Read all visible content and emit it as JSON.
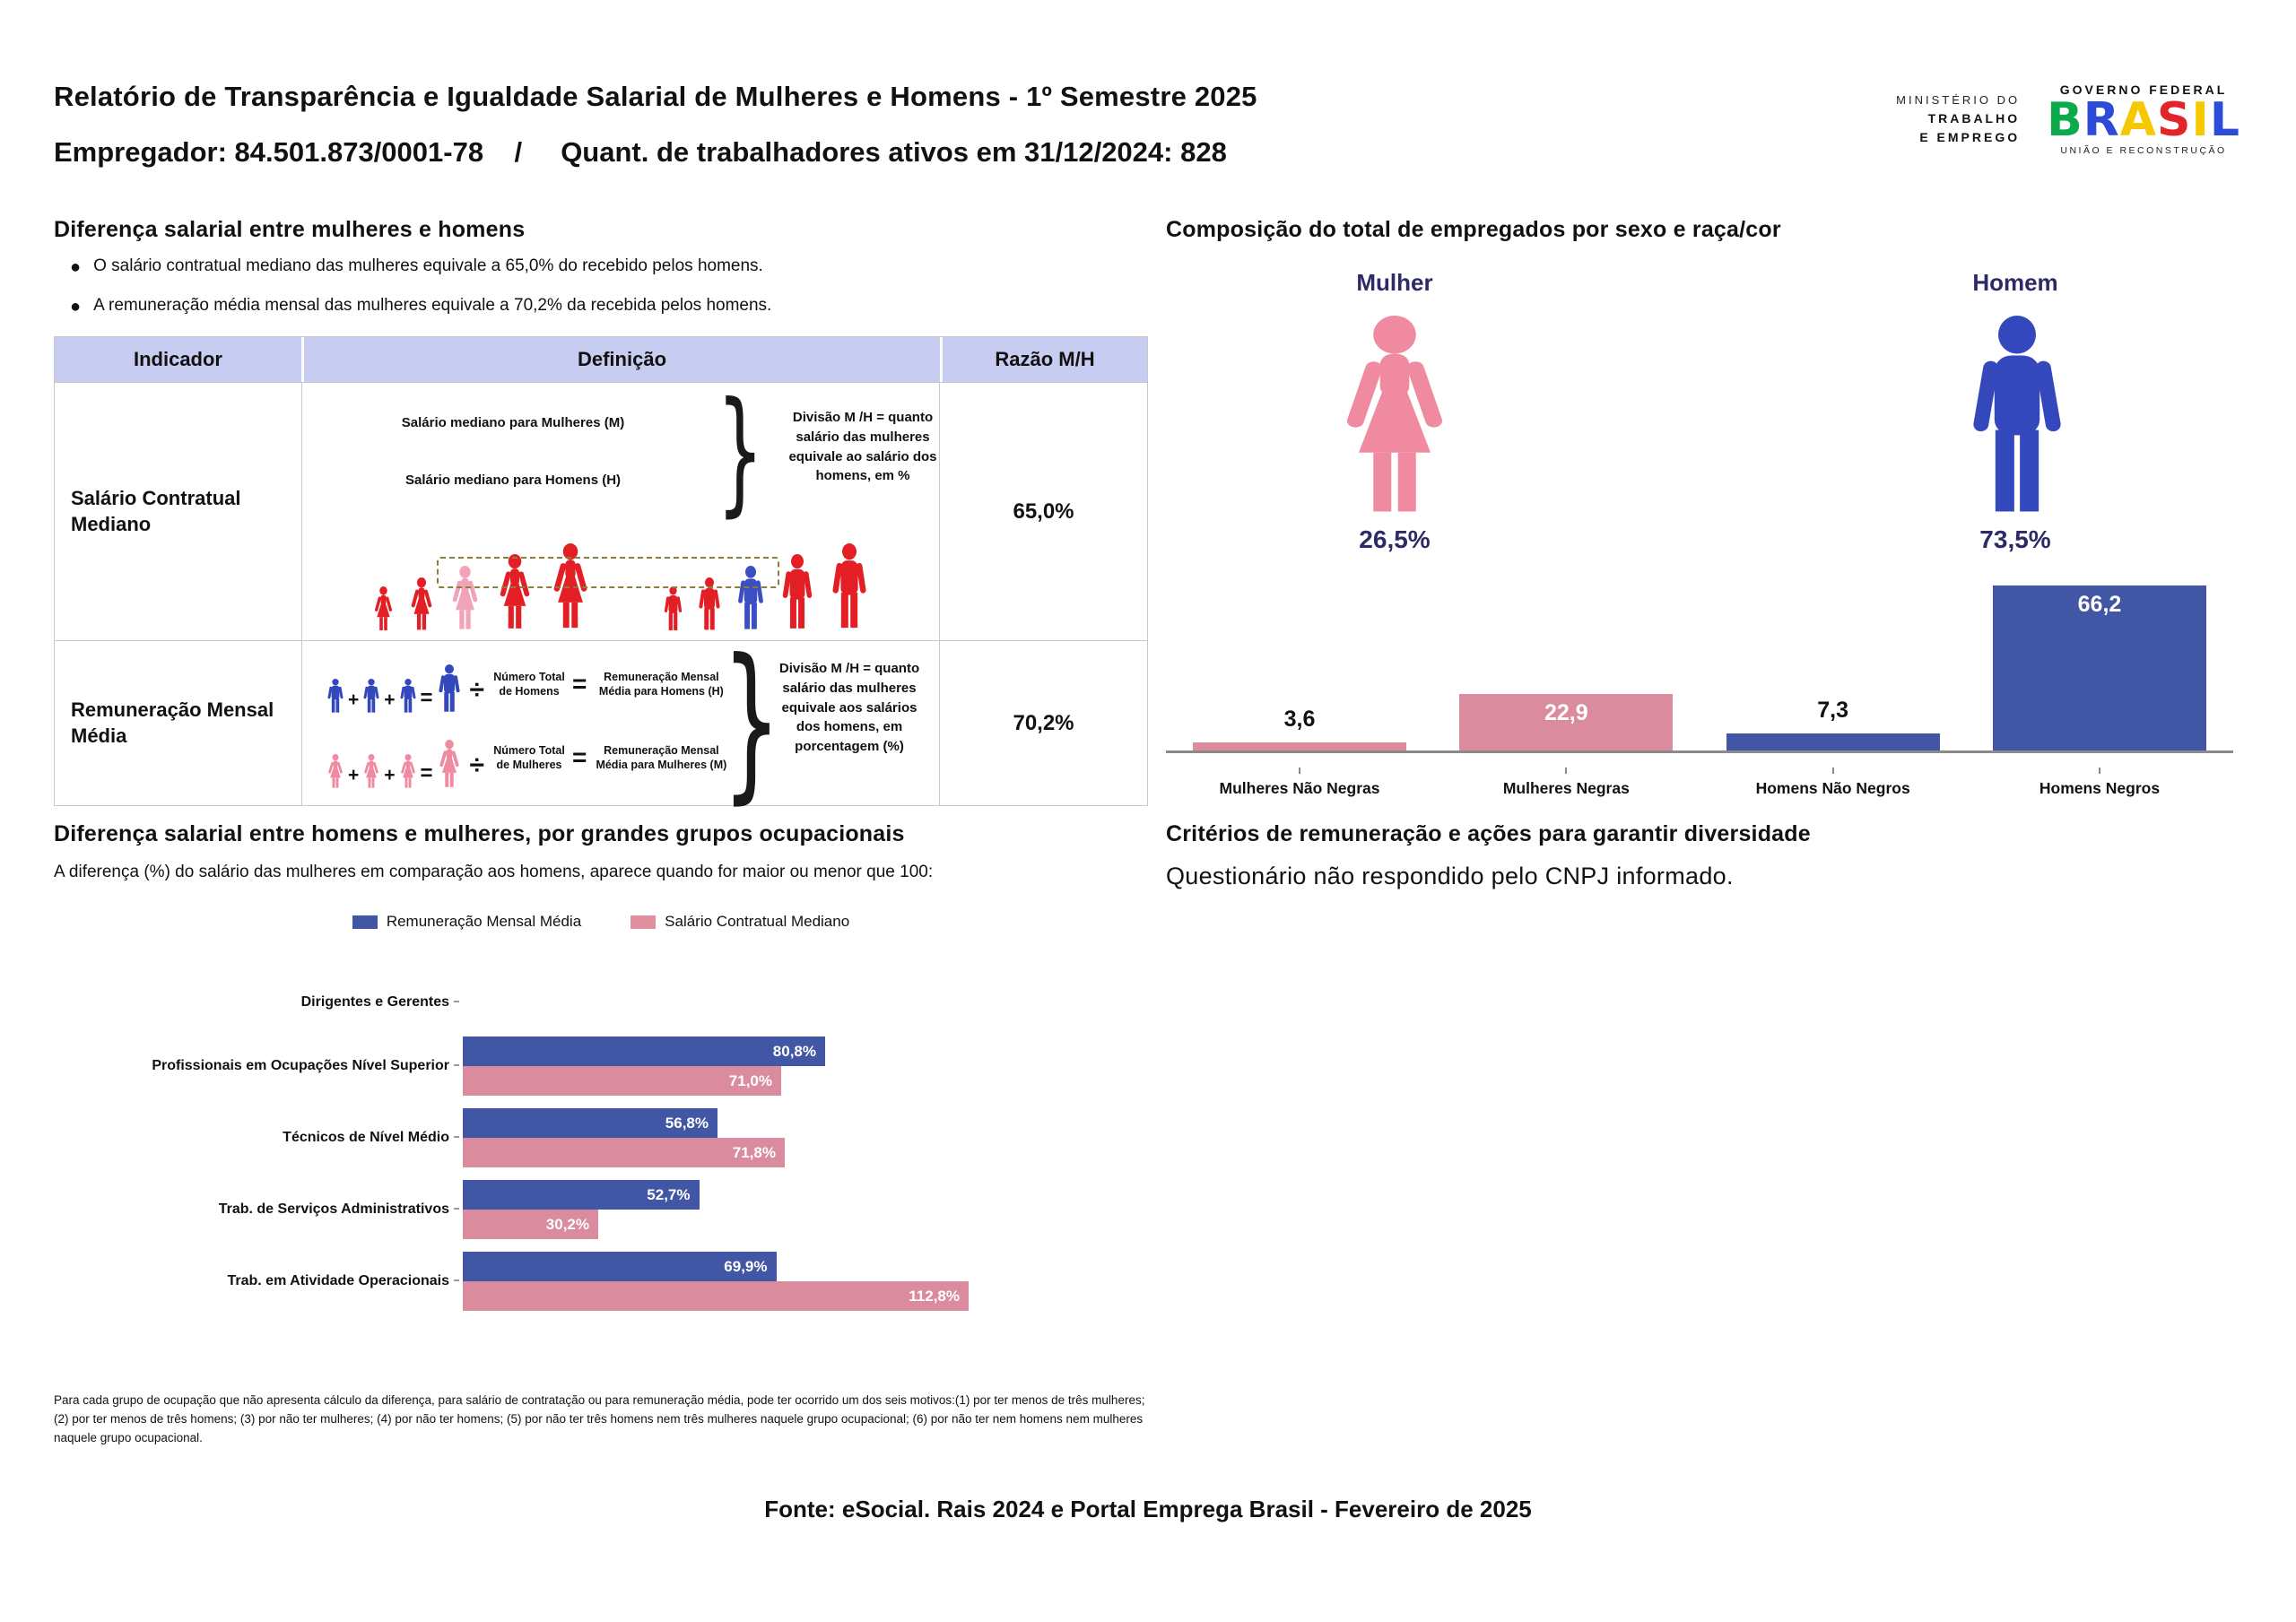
{
  "colors": {
    "accent_blue": "#4156a4",
    "accent_pink": "#da8b9e",
    "legend_pink": "#e2909f",
    "icon_red": "#e41e25",
    "icon_pink": "#ef8aa0",
    "icon_blue": "#3448bd",
    "median_pink": "#f2a3b8",
    "median_blue": "#3a50c2",
    "navy": "#2e2a66",
    "lavender": "#c7cdf0",
    "axis_gray": "#8a8a8a",
    "border_gray": "#c8c8c8",
    "dashed_olive": "#8b7d3a"
  },
  "header": {
    "title_line1": "Relatório de Transparência e Igualdade Salarial de Mulheres e Homens - 1º Semestre 2025",
    "title_line2": "Empregador: 84.501.873/0001-78    /     Quant. de trabalhadores ativos em 31/12/2024: 828",
    "ministry": {
      "line1": "MINISTÉRIO DO",
      "line2": "TRABALHO",
      "line3": "E EMPREGO"
    },
    "gov_logo": {
      "top": "GOVERNO FEDERAL",
      "brand": "BRASIL",
      "bottom": "UNIÃO E RECONSTRUÇÃO",
      "letter_colors": [
        "#0bab4c",
        "#2b4bd8",
        "#f5c800",
        "#e3242b",
        "#f5c800",
        "#2b4bd8"
      ]
    }
  },
  "salary_gap": {
    "heading": "Diferença salarial entre mulheres e homens",
    "bullets": [
      "O salário contratual mediano das mulheres equivale a 65,0% do recebido pelos homens.",
      "A remuneração média mensal das mulheres equivale a 70,2% da recebida pelos homens."
    ],
    "table": {
      "col_indicator": "Indicador",
      "col_definition": "Definição",
      "col_ratio": "Razão M/H",
      "brace": "}",
      "operators": {
        "plus": "+",
        "equals": "=",
        "divide": "÷"
      },
      "row1": {
        "indicator": "Salário Contratual Mediano",
        "line_women": "Salário mediano para Mulheres (M)",
        "line_men": "Salário mediano para Homens (H)",
        "explanation": "Divisão M /H = quanto salário das mulheres equivale ao salário dos homens, em %",
        "ratio": "65,0%"
      },
      "row2": {
        "indicator": "Remuneração Mensal Média",
        "men_divisor": "Número Total de Homens",
        "men_result": "Remuneração Mensal Média para Homens (H)",
        "women_divisor": "Número Total de Mulheres",
        "women_result": "Remuneração Mensal Média para Mulheres (M)",
        "explanation": "Divisão M /H = quanto salário das mulheres equivale aos salários dos homens, em porcentagem (%)",
        "ratio": "70,2%"
      }
    }
  },
  "composition": {
    "heading": "Composição do total de empregados por sexo e raça/cor",
    "female_label": "Mulher",
    "female_pct": "26,5%",
    "male_label": "Homem",
    "male_pct": "73,5%"
  },
  "occupational": {
    "heading": "Diferença salarial entre homens e mulheres, por grandes grupos ocupacionais",
    "subtitle": "A diferença (%) do salário das mulheres em comparação aos homens, aparece quando for maior ou menor que 100:",
    "legend": [
      "Remuneração Mensal Média",
      "Salário Contratual Mediano"
    ]
  },
  "criteria": {
    "heading": "Critérios de remuneração e ações para garantir diversidade",
    "text": "Questionário não respondido pelo CNPJ informado."
  },
  "footnote": "Para cada grupo de ocupação que não apresenta cálculo da diferença, para salário de contratação ou para remuneração média, pode ter ocorrido um dos seis motivos:(1) por ter menos de três mulheres; (2) por ter menos de três homens; (3) por não ter mulheres; (4) por não ter homens; (5) por não ter três homens nem três mulheres naquele grupo ocupacional; (6) por não ter nem homens nem mulheres naquele grupo ocupacional.",
  "source": "Fonte: eSocial. Rais 2024 e Portal Emprega Brasil - Fevereiro de 2025",
  "chart_data": [
    {
      "type": "bar",
      "title": "Composição do total de empregados por sexo e raça/cor",
      "categories": [
        "Mulheres Não Negras",
        "Mulheres Negras",
        "Homens Não Negros",
        "Homens Negros"
      ],
      "values": [
        3.6,
        22.9,
        7.3,
        66.2
      ],
      "bar_colors": [
        "#da8b9e",
        "#da8b9e",
        "#4156a4",
        "#4156a4"
      ],
      "value_labels": [
        "3,6",
        "22,9",
        "7,3",
        "66,2"
      ],
      "female_share": 26.5,
      "male_share": 73.5,
      "ylim": [
        0,
        70
      ],
      "grid": false,
      "legend_position": "none"
    },
    {
      "type": "bar",
      "orientation": "horizontal",
      "title": "Diferença salarial entre homens e mulheres, por grandes grupos ocupacionais",
      "categories": [
        "Dirigentes e Gerentes",
        "Profissionais em Ocupações Nível Superior",
        "Técnicos de Nível Médio",
        "Trab. de Serviços Administrativos",
        "Trab. em Atividade Operacionais"
      ],
      "series": [
        {
          "name": "Remuneração Mensal Média",
          "color": "#4156a4",
          "values": [
            null,
            80.8,
            56.8,
            52.7,
            69.9
          ]
        },
        {
          "name": "Salário Contratual Mediano",
          "color": "#da8b9e",
          "values": [
            null,
            71.0,
            71.8,
            30.2,
            112.8
          ]
        }
      ],
      "unit": "%",
      "xlim": [
        0,
        120
      ],
      "grid": false,
      "legend_position": "top"
    }
  ]
}
